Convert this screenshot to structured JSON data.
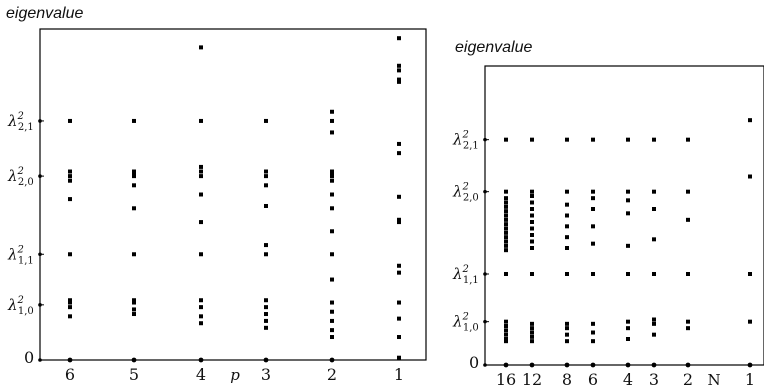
{
  "chart_data": [
    {
      "type": "scatter",
      "title": "eigenvalue",
      "ylabel": "eigenvalue",
      "xlabel": "p",
      "categories": [
        "6",
        "5",
        "4",
        "3",
        "2",
        "1"
      ],
      "yticks": [
        {
          "sym": "λ",
          "sub": "2,1",
          "sup": "2",
          "value": 5.2
        },
        {
          "sym": "λ",
          "sub": "2,0",
          "sup": "2",
          "value": 4.0
        },
        {
          "sym": "λ",
          "sub": "1,1",
          "sup": "2",
          "value": 2.3
        },
        {
          "sym": "λ",
          "sub": "1,0",
          "sup": "2",
          "value": 1.2
        },
        {
          "sym": "0",
          "sub": "",
          "sup": "",
          "value": 0
        }
      ],
      "ylim": [
        0,
        7.2
      ],
      "series": [
        {
          "values": [
            {
              "x": "6",
              "y": [
                0,
                0.95,
                1.15,
                1.25,
                1.3,
                2.3,
                3.5,
                3.9,
                4.0,
                4.1,
                5.2
              ]
            },
            {
              "x": "5",
              "y": [
                0,
                1.0,
                1.1,
                1.25,
                1.3,
                2.3,
                3.3,
                3.8,
                4.0,
                4.05,
                4.1,
                5.2
              ]
            },
            {
              "x": "4",
              "y": [
                0,
                0.8,
                0.95,
                1.15,
                1.3,
                2.3,
                3.0,
                3.6,
                4.0,
                4.1,
                4.2,
                5.2,
                6.8
              ]
            },
            {
              "x": "3",
              "y": [
                0,
                0.7,
                0.85,
                1.0,
                1.15,
                1.3,
                2.3,
                2.5,
                3.35,
                3.8,
                4.0,
                4.1,
                5.2
              ]
            },
            {
              "x": "2",
              "y": [
                0,
                0.5,
                0.65,
                0.85,
                1.05,
                1.25,
                1.75,
                2.3,
                2.8,
                3.3,
                3.6,
                3.9,
                4.0,
                4.05,
                4.1,
                4.95,
                5.2,
                5.4
              ]
            },
            {
              "x": "1",
              "y": [
                0.05,
                0.5,
                0.9,
                1.25,
                1.9,
                2.05,
                3.0,
                3.05,
                3.55,
                4.5,
                4.7,
                6.05,
                6.1,
                6.3,
                6.4,
                7.0
              ]
            }
          ]
        }
      ]
    },
    {
      "type": "scatter",
      "title": "eigenvalue",
      "ylabel": "eigenvalue",
      "xlabel": "N",
      "categories": [
        "16",
        "12",
        "8",
        "6",
        "4",
        "3",
        "2",
        "1"
      ],
      "yticks": [
        {
          "sym": "λ",
          "sub": "2,1",
          "sup": "2",
          "value": 5.2
        },
        {
          "sym": "λ",
          "sub": "2,0",
          "sup": "2",
          "value": 4.0
        },
        {
          "sym": "λ",
          "sub": "1,1",
          "sup": "2",
          "value": 2.1
        },
        {
          "sym": "λ",
          "sub": "1,0",
          "sup": "2",
          "value": 1.0
        },
        {
          "sym": "0",
          "sub": "",
          "sup": "",
          "value": 0
        }
      ],
      "ylim": [
        0,
        6.9
      ],
      "series": [
        {
          "values": [
            {
              "x": "16",
              "y": [
                0,
                0.55,
                0.6,
                0.7,
                0.8,
                0.9,
                1.0,
                2.1,
                2.65,
                2.75,
                2.85,
                2.95,
                3.05,
                3.15,
                3.25,
                3.35,
                3.45,
                3.55,
                3.65,
                3.75,
                3.85,
                4.0,
                5.2
              ]
            },
            {
              "x": "12",
              "y": [
                0,
                0.55,
                0.65,
                0.75,
                0.85,
                0.95,
                2.1,
                2.7,
                2.85,
                3.0,
                3.15,
                3.3,
                3.45,
                3.6,
                3.75,
                3.9,
                4.0,
                5.2
              ]
            },
            {
              "x": "8",
              "y": [
                0,
                0.55,
                0.7,
                0.85,
                0.95,
                2.1,
                2.7,
                2.95,
                3.2,
                3.45,
                3.7,
                4.0,
                5.2
              ]
            },
            {
              "x": "6",
              "y": [
                0,
                0.55,
                0.75,
                0.95,
                2.1,
                2.8,
                3.2,
                3.6,
                3.85,
                4.0,
                5.2
              ]
            },
            {
              "x": "4",
              "y": [
                0,
                0.6,
                0.85,
                1.0,
                2.1,
                2.75,
                3.5,
                3.8,
                4.0,
                5.2
              ]
            },
            {
              "x": "3",
              "y": [
                0,
                0.7,
                0.95,
                1.05,
                2.1,
                2.9,
                3.6,
                4.0,
                5.2
              ]
            },
            {
              "x": "2",
              "y": [
                0,
                0.85,
                1.0,
                2.1,
                3.35,
                4.0,
                5.2
              ]
            },
            {
              "x": "1",
              "y": [
                0,
                1.0,
                2.1,
                4.35,
                5.65
              ]
            }
          ]
        }
      ]
    }
  ]
}
